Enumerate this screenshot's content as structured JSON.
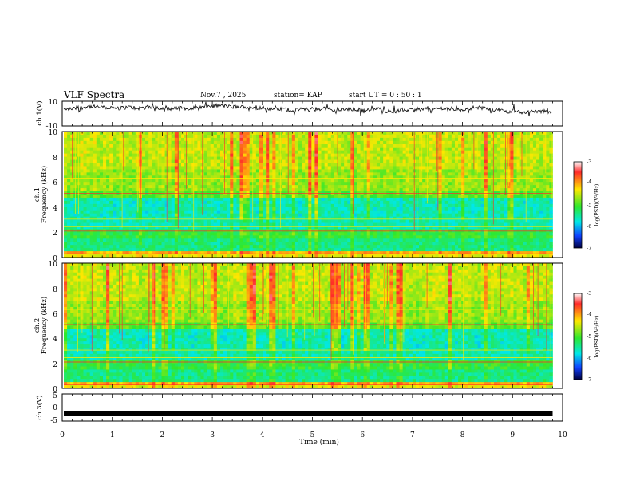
{
  "header": {
    "title": "VLF Spectra",
    "date": "Nov.7 , 2025",
    "station": "station= KAP",
    "start": "start UT = 0 : 50 : 1"
  },
  "chart_data": [
    {
      "type": "line",
      "name": "ch.1 waveform",
      "ylabel": "ch.1(V)",
      "ylim": [
        -10,
        10
      ],
      "yticks": [
        "10",
        "-10"
      ],
      "xlim": [
        0,
        10
      ],
      "x_unit": "min",
      "data_end_min": 9.8,
      "signal": "broadband noise, roughly 0 to 7 V"
    },
    {
      "type": "heatmap",
      "name": "ch.1 spectrogram",
      "ylabel_line1": "ch.1",
      "ylabel_line2": "Frequency (kHz)",
      "ylim": [
        0,
        10
      ],
      "yticks": [
        "10",
        "8",
        "6",
        "4",
        "2",
        "0"
      ],
      "xlim": [
        0,
        10
      ],
      "colorbar": {
        "label": "log(PSD)(V²/Hz)",
        "range": [
          -7,
          -3
        ],
        "ticks": [
          "-3",
          "-4",
          "-5",
          "-6",
          "-7"
        ]
      }
    },
    {
      "type": "heatmap",
      "name": "ch.2 spectrogram",
      "ylabel_line1": "ch.2",
      "ylabel_line2": "Frequency (kHz)",
      "ylim": [
        0,
        10
      ],
      "yticks": [
        "10",
        "8",
        "6",
        "4",
        "2",
        "0"
      ],
      "xlim": [
        0,
        10
      ],
      "colorbar": {
        "label": "log(PSD)(V²/Hz)",
        "range": [
          -7,
          -3
        ],
        "ticks": [
          "-3",
          "-4",
          "-5",
          "-6",
          "-7"
        ]
      }
    },
    {
      "type": "line",
      "name": "ch.3 level",
      "ylabel": "ch.3(V)",
      "ylim": [
        -5,
        5
      ],
      "yticks": [
        "5",
        "0",
        "-5"
      ],
      "xlim": [
        0,
        10
      ],
      "level_v": -2.2,
      "xlabel": "Time (min)",
      "xticks": [
        "0",
        "1",
        "2",
        "3",
        "4",
        "5",
        "6",
        "7",
        "8",
        "9",
        "10"
      ]
    }
  ]
}
